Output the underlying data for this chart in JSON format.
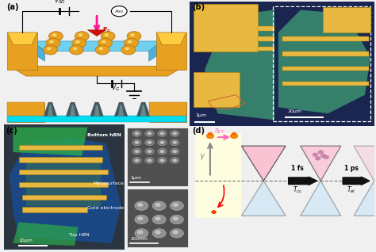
{
  "bg_color": "#f0f0f0",
  "label_fontsize": 7,
  "panel_a": {
    "gold": "#E8A020",
    "blue_platform": "#5CC8E0",
    "circuit_bg": "#f0f0f0",
    "vsd": "V_{SD}",
    "asd": "A_{SD}",
    "vg": "V_G",
    "pin": "P_{in}",
    "pink": "#FF1493",
    "red_tri": "#CC2200",
    "cone_color": "#4a6a5a",
    "cross_gold": "#E8A020",
    "cross_blue": "#00DDEE"
  },
  "panel_b": {
    "bg": "#1a2550",
    "gold": "#E8B840",
    "green_teal": "#3a9070",
    "inset_border": "#ffffff",
    "scale1": "2μm",
    "scale2": "20μm"
  },
  "panel_c": {
    "bg": "#2a3a4a",
    "blue_flake": "#1a4a8a",
    "green_hbn": "#3aaa5a",
    "gold": "#E8B840",
    "dot_outer": "#888888",
    "dot_inner": "#cccccc",
    "sem_bg": "#505050",
    "labels_color": "#ffffff",
    "scale1": "10μm",
    "scale2": "1μm",
    "scale3": "200nm"
  },
  "panel_d": {
    "yellow_bg": "#FFFDE0",
    "pink": "#FF69B4",
    "blue_cone": "#AADDFF",
    "pink_cone": "#FFB0C8",
    "gray_arrow": "#999999",
    "dashed": "#666666",
    "orange_mol": "#FF8C00",
    "arrow_black": "#111111"
  }
}
